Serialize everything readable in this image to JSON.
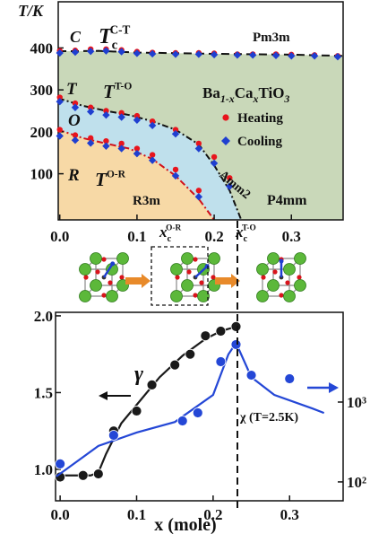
{
  "chart_data": [
    {
      "type": "scatter",
      "ylabel": "T/K",
      "xlim": [
        -0.002,
        0.367
      ],
      "ylim": [
        -10,
        510
      ],
      "xticks": [
        {
          "value": 0,
          "label": "0.0"
        },
        {
          "value": 0.1,
          "label": "0.1"
        },
        {
          "value": 0.2,
          "label": "0.2"
        },
        {
          "value": 0.3,
          "label": "0.3"
        }
      ],
      "yticks": [
        100,
        200,
        300,
        400
      ],
      "series": [
        {
          "name": "Heating",
          "color": "#e8141c",
          "marker": "circle",
          "x": [
            0,
            0.02,
            0.04,
            0.06,
            0.08,
            0.1,
            0.12,
            0.15,
            0.18,
            0.2,
            0.23,
            0.25,
            0.28,
            0.3,
            0.33,
            0.36,
            0,
            0.02,
            0.04,
            0.06,
            0.08,
            0.1,
            0.12,
            0.15,
            0.18,
            0.2,
            0.22,
            0,
            0.02,
            0.04,
            0.06,
            0.08,
            0.1,
            0.12,
            0.15,
            0.18
          ],
          "values": [
            393,
            394,
            397,
            397,
            395,
            391,
            389,
            388,
            388,
            387,
            385,
            385,
            385,
            384,
            383,
            381,
            282,
            268,
            258,
            250,
            245,
            238,
            225,
            205,
            172,
            140,
            90,
            205,
            192,
            185,
            178,
            172,
            160,
            145,
            110,
            60
          ]
        },
        {
          "name": "Cooling",
          "color": "#1f3fd0",
          "marker": "diamond",
          "x": [
            0,
            0.02,
            0.04,
            0.06,
            0.08,
            0.1,
            0.12,
            0.15,
            0.18,
            0.2,
            0.23,
            0.25,
            0.28,
            0.3,
            0.33,
            0.36,
            0,
            0.02,
            0.04,
            0.06,
            0.08,
            0.1,
            0.12,
            0.15,
            0.18,
            0.2,
            0.22,
            0,
            0.02,
            0.04,
            0.06,
            0.08,
            0.1,
            0.12,
            0.15,
            0.18
          ],
          "values": [
            388,
            390,
            392,
            393,
            391,
            387,
            386,
            385,
            385,
            384,
            383,
            383,
            382,
            381,
            381,
            379,
            272,
            258,
            248,
            240,
            235,
            228,
            215,
            195,
            160,
            125,
            70,
            190,
            180,
            173,
            166,
            160,
            148,
            132,
            95,
            45
          ]
        }
      ],
      "boundaries": [
        {
          "color": "#111111",
          "dash": "9 5",
          "fill": "#c9d8b9",
          "x": [
            -0.002,
            0.05,
            0.1,
            0.2,
            0.3,
            0.367
          ],
          "values": [
            392,
            393,
            389,
            386,
            384,
            381
          ]
        },
        {
          "color": "#111111",
          "dash": "7 3 2 3",
          "fill": "#bfe0ec",
          "x": [
            -0.002,
            0.03,
            0.06,
            0.09,
            0.12,
            0.15,
            0.18,
            0.2,
            0.22,
            0.235
          ],
          "values": [
            280,
            262,
            250,
            240,
            225,
            205,
            170,
            120,
            60,
            -10
          ]
        },
        {
          "color": "#d0101a",
          "dash": "7 3 2 3",
          "fill": "#f7d9a6",
          "x": [
            -0.002,
            0.03,
            0.06,
            0.09,
            0.12,
            0.15,
            0.18,
            0.2
          ],
          "values": [
            205,
            185,
            172,
            160,
            135,
            95,
            40,
            -10
          ]
        }
      ],
      "annotations": [
        {
          "text": "C"
        },
        {
          "text": "T",
          "sub": "c",
          "sup": "C-T"
        },
        {
          "text": "Pm3m"
        },
        {
          "text": "T"
        },
        {
          "text": "T",
          "sup": "T-O"
        },
        {
          "parts": [
            "Ba",
            "1-x",
            "Ca",
            "x",
            "TiO",
            "3"
          ]
        },
        {
          "text": "O"
        },
        {
          "text": "R"
        },
        {
          "text": "T",
          "sup": "O-R"
        },
        {
          "text": "Amm2"
        },
        {
          "text": "R3m"
        },
        {
          "text": "P4mm"
        }
      ]
    },
    {
      "type": "scatter",
      "xlabel": "x (mole)",
      "xlim": [
        -0.006,
        0.37
      ],
      "ylim": [
        0.795,
        2.023
      ],
      "y2lim": [
        58,
        13300
      ],
      "y2log": true,
      "xticks": [
        {
          "value": 0,
          "label": "0.0"
        },
        {
          "value": 0.1,
          "label": "0.1"
        },
        {
          "value": 0.2,
          "label": "0.2"
        },
        {
          "value": 0.3,
          "label": "0.3"
        }
      ],
      "yticks": [
        {
          "value": 1,
          "label": "1.0"
        },
        1.5,
        {
          "value": 2,
          "label": "2.0"
        }
      ],
      "y2ticks": [
        {
          "value": 100,
          "label": "10²"
        },
        {
          "value": 1000,
          "label": "10³"
        }
      ],
      "series": [
        {
          "name": "γ",
          "color": "#1a1a1a",
          "x": [
            0,
            0.03,
            0.05,
            0.07,
            0.1,
            0.12,
            0.15,
            0.17,
            0.19,
            0.21,
            0.23
          ],
          "values": [
            0.95,
            0.96,
            0.97,
            1.25,
            1.38,
            1.55,
            1.68,
            1.75,
            1.87,
            1.9,
            1.93
          ],
          "fit": {
            "x": [
              0,
              0.04,
              0.05,
              0.06,
              0.08,
              0.1,
              0.13,
              0.16,
              0.19,
              0.21,
              0.23
            ],
            "values": [
              0.96,
              0.96,
              0.98,
              1.1,
              1.3,
              1.42,
              1.6,
              1.74,
              1.85,
              1.9,
              1.93
            ]
          }
        },
        {
          "name": "χ (T=2.5K)",
          "color": "#2447d6",
          "axis": "y2",
          "x": [
            0,
            0.07,
            0.16,
            0.18,
            0.21,
            0.23,
            0.25,
            0.3
          ],
          "values": [
            168,
            384,
            581,
            733,
            3206,
            5250,
            2170,
            1960
          ],
          "fit": {
            "x": [
              -0.005,
              0.05,
              0.1,
              0.15,
              0.2,
              0.22,
              0.23,
              0.25,
              0.28,
              0.33,
              0.345
            ],
            "values": [
              117,
              282,
              415,
              563,
              1230,
              3960,
              5500,
              2050,
              1230,
              830,
              730
            ]
          }
        }
      ],
      "annotations": [
        {
          "text": "x",
          "sub": "c",
          "sup": "O-R"
        },
        {
          "text": "x",
          "sub": "c",
          "sup": "T-O"
        }
      ]
    }
  ]
}
